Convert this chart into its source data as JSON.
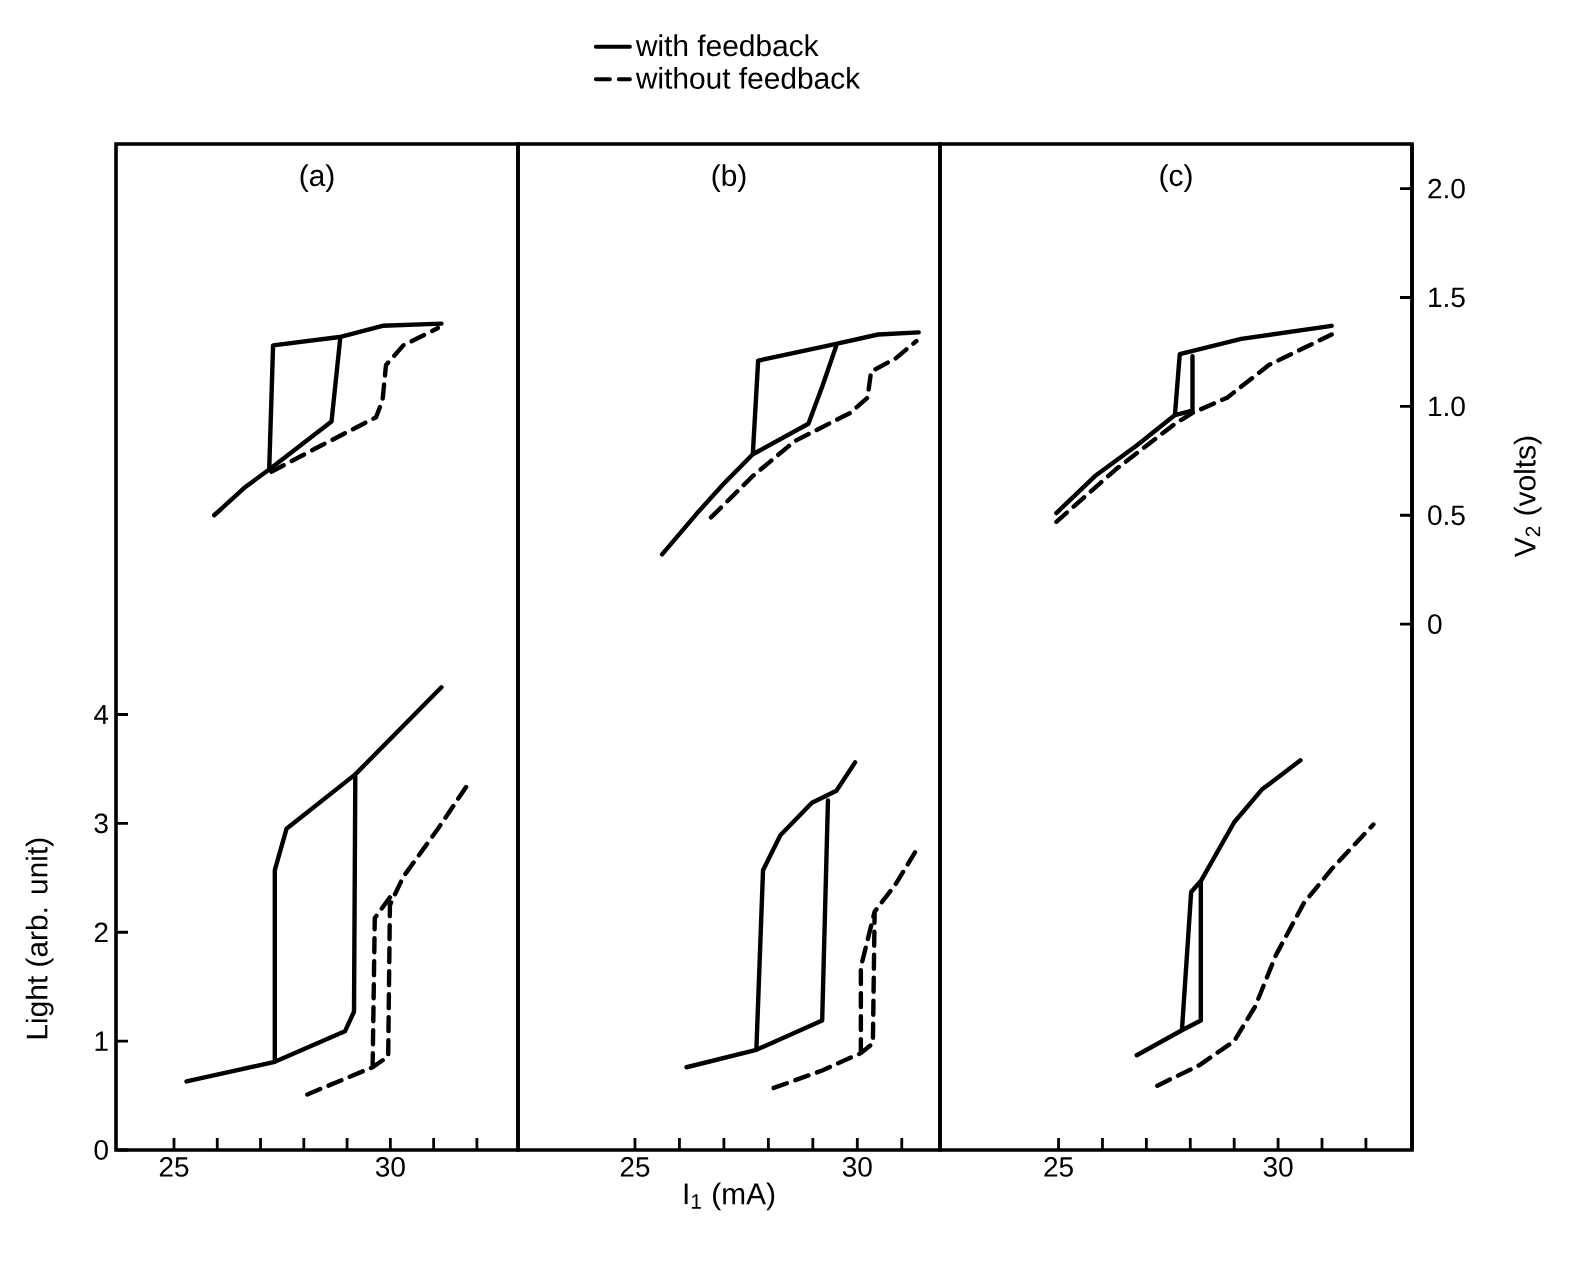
{
  "chart_data": [
    {
      "type": "line",
      "title": "(a)",
      "ylabel": "Light (arb. unit)",
      "xlim": [
        23.66,
        32.95
      ],
      "xticks": [
        25,
        {
          "value": 26,
          "label": null
        },
        {
          "value": 27,
          "label": null
        },
        {
          "value": 28,
          "label": null
        },
        {
          "value": 29,
          "label": null
        },
        30,
        {
          "value": 31,
          "label": null
        },
        {
          "value": 32,
          "label": null
        }
      ],
      "ylim": [
        0,
        9.24
      ],
      "yticks": [
        0,
        1,
        2,
        3,
        4
      ],
      "y2lim": [
        -2.415,
        2.205
      ],
      "tick_labels": [
        "x",
        "y"
      ],
      "series": [
        {
          "color": "#000000",
          "line_style": "solid",
          "x": [
            25.29,
            27.33,
            28.95,
            29.16,
            29.19,
            null,
            27.33,
            27.33,
            27.6,
            29.19,
            31.18
          ],
          "values": [
            0.63,
            0.81,
            1.09,
            1.27,
            3.43,
            null,
            0.81,
            2.57,
            2.95,
            3.45,
            4.25
          ]
        },
        {
          "color": "#000000",
          "line_style": "dashed",
          "x": [
            28.08,
            29.59,
            29.95,
            29.99,
            30.3,
            31.1,
            31.81,
            null,
            29.59,
            29.64,
            29.99
          ],
          "values": [
            0.51,
            0.76,
            0.86,
            2.25,
            2.51,
            2.95,
            3.37,
            null,
            0.76,
            2.13,
            2.32
          ]
        },
        {
          "color": "#000000",
          "line_style": "solid",
          "axis": "y2",
          "x": [
            25.93,
            26.65,
            27.2,
            28.64,
            28.84,
            null,
            27.2,
            27.29,
            28.87,
            29.82,
            31.18
          ],
          "values": [
            0.5,
            0.63,
            0.71,
            0.93,
            1.31,
            null,
            0.71,
            1.28,
            1.32,
            1.37,
            1.38
          ]
        },
        {
          "color": "#000000",
          "line_style": "dashed",
          "axis": "y2",
          "x": [
            27.25,
            28.4,
            29.67,
            29.82,
            29.9,
            30.3,
            31.1
          ],
          "values": [
            0.7,
            0.82,
            0.95,
            1.03,
            1.19,
            1.28,
            1.36
          ]
        }
      ]
    },
    {
      "type": "line",
      "title": "(b)",
      "xlabel": "I$_{1}$ (mA)",
      "legend": "top",
      "xlim": [
        22.37,
        31.86
      ],
      "xticks": [
        25,
        {
          "value": 26,
          "label": null
        },
        {
          "value": 27,
          "label": null
        },
        {
          "value": 28,
          "label": null
        },
        {
          "value": 29,
          "label": null
        },
        30,
        {
          "value": 31,
          "label": null
        }
      ],
      "ylim": [
        0,
        9.24
      ],
      "y2lim": [
        -2.415,
        2.205
      ],
      "tick_labels": [
        "x"
      ],
      "series": [
        {
          "name": "with feedback",
          "color": "#000000",
          "line_style": "solid",
          "x": [
            26.16,
            27.73,
            29.21,
            29.34,
            null,
            27.73,
            27.88,
            28.27,
            28.98,
            29.53,
            29.95
          ],
          "values": [
            0.76,
            0.92,
            1.19,
            3.21,
            null,
            0.92,
            2.57,
            2.89,
            3.19,
            3.3,
            3.56
          ]
        },
        {
          "name": "without feedback",
          "color": "#000000",
          "line_style": "dashed",
          "x": [
            28.12,
            29.21,
            30.08,
            30.35,
            30.39,
            30.86,
            31.38,
            null,
            30.08,
            30.08,
            30.39
          ],
          "values": [
            0.57,
            0.73,
            0.89,
            0.98,
            2.19,
            2.44,
            2.79,
            null,
            0.89,
            1.68,
            2.19
          ]
        },
        {
          "color": "#000000",
          "line_style": "solid",
          "axis": "y2",
          "x": [
            25.61,
            26.4,
            27.02,
            27.65,
            28.9,
            29.21,
            29.53,
            null,
            27.65,
            27.77,
            29.37,
            30.47,
            31.38
          ],
          "values": [
            0.32,
            0.51,
            0.65,
            0.78,
            0.92,
            1.09,
            1.28,
            null,
            0.78,
            1.21,
            1.28,
            1.33,
            1.34
          ]
        },
        {
          "color": "#000000",
          "line_style": "dashed",
          "axis": "y2",
          "x": [
            26.71,
            27.65,
            28.59,
            29.84,
            30.23,
            30.31,
            30.86,
            31.33
          ],
          "values": [
            0.49,
            0.68,
            0.84,
            0.97,
            1.04,
            1.16,
            1.22,
            1.3
          ]
        }
      ]
    },
    {
      "type": "line",
      "title": "(c)",
      "y2label": "V$_{2}$ (volts)",
      "xlim": [
        22.3,
        33.05
      ],
      "xticks": [
        25,
        {
          "value": 26,
          "label": null
        },
        {
          "value": 27,
          "label": null
        },
        {
          "value": 28,
          "label": null
        },
        {
          "value": 29,
          "label": null
        },
        30,
        {
          "value": 31,
          "label": null
        },
        {
          "value": 32,
          "label": null
        }
      ],
      "ylim": [
        0,
        9.24
      ],
      "y2lim": [
        -2.415,
        2.205
      ],
      "y2ticks": [
        0,
        {
          "value": 0.5,
          "label": "0.5"
        },
        {
          "value": 1,
          "label": "1.0"
        },
        {
          "value": 1.5,
          "label": "1.5"
        },
        {
          "value": 2,
          "label": "2.0"
        }
      ],
      "tick_labels": [
        "x",
        "y2"
      ],
      "series": [
        {
          "color": "#000000",
          "line_style": "solid",
          "x": [
            26.78,
            27.81,
            28.02,
            28.24,
            29.0,
            29.63,
            30.51,
            null,
            27.81,
            28.24,
            28.24
          ],
          "values": [
            0.87,
            1.1,
            2.37,
            2.47,
            3.01,
            3.31,
            3.58,
            null,
            1.1,
            1.19,
            2.47
          ]
        },
        {
          "color": "#000000",
          "line_style": "dashed",
          "x": [
            27.25,
            28.21,
            29.0,
            29.48,
            29.95,
            30.59,
            31.22,
            32.17
          ],
          "values": [
            0.59,
            0.78,
            1.0,
            1.32,
            1.79,
            2.27,
            2.58,
            2.99
          ]
        },
        {
          "color": "#000000",
          "line_style": "solid",
          "axis": "y2",
          "x": [
            24.95,
            25.83,
            26.78,
            27.65,
            27.76,
            29.16,
            31.22,
            null,
            27.65,
            28.05,
            28.05
          ],
          "values": [
            0.51,
            0.68,
            0.82,
            0.96,
            1.24,
            1.31,
            1.37,
            null,
            0.96,
            0.98,
            1.23
          ]
        },
        {
          "color": "#000000",
          "line_style": "dashed",
          "axis": "y2",
          "x": [
            24.95,
            26.3,
            27.65,
            28.05,
            28.84,
            29.79,
            31.22
          ],
          "values": [
            0.47,
            0.71,
            0.92,
            0.97,
            1.04,
            1.19,
            1.33
          ]
        }
      ]
    }
  ]
}
